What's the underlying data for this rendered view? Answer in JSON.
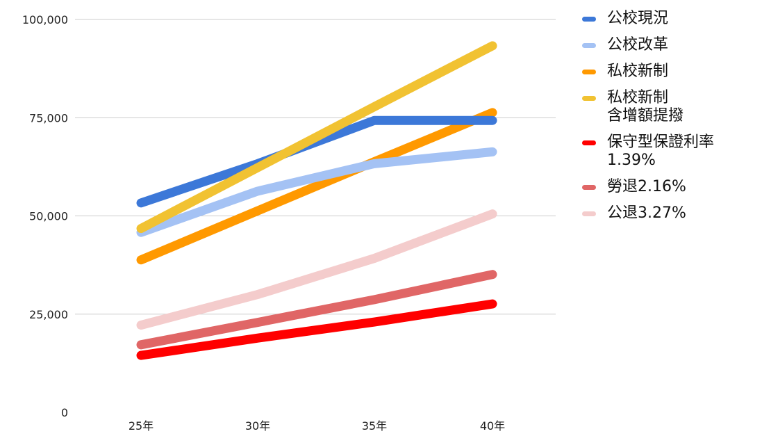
{
  "chart_data": {
    "type": "line",
    "categories": [
      "25年",
      "30年",
      "35年",
      "40年"
    ],
    "ylim": [
      0,
      100000
    ],
    "yticks": [
      "100,000",
      "75,000",
      "50,000",
      "25,000",
      "0"
    ],
    "grid": true,
    "legend_position": "right",
    "series": [
      {
        "name": "公校現況",
        "color": "#3c78d8",
        "values": [
          53300,
          63300,
          74300,
          74300
        ]
      },
      {
        "name": "公校改革",
        "color": "#a4c2f4",
        "values": [
          45800,
          56300,
          63300,
          66300
        ]
      },
      {
        "name": "私校新制",
        "color": "#ff9900",
        "values": [
          38800,
          51300,
          63800,
          76300
        ]
      },
      {
        "name": "私校新制\n含增額提撥",
        "color": "#f1c232",
        "values": [
          46800,
          62300,
          77800,
          93300
        ]
      },
      {
        "name": "保守型保證利率\n1.39%",
        "color": "#ff0000",
        "values": [
          14500,
          18900,
          23000,
          27600
        ]
      },
      {
        "name": "勞退2.16%",
        "color": "#e06666",
        "values": [
          17200,
          22900,
          28700,
          35100
        ]
      },
      {
        "name": "公退3.27%",
        "color": "#f4cccc",
        "values": [
          22200,
          30000,
          39200,
          50500
        ]
      }
    ]
  }
}
